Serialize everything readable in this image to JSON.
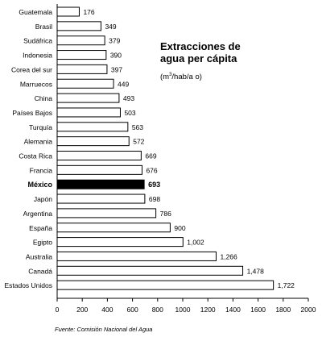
{
  "chart_data": {
    "type": "bar",
    "orientation": "horizontal",
    "title": "Extracciones de\nagua per cápita",
    "units": {
      "prefix": "(m",
      "sup": "3",
      "suffix": "/hab/a o)"
    },
    "source": "Fuente: Comisión Nacional del Agua",
    "categories": [
      "Guatemala",
      "Brasil",
      "Sudáfrica",
      "Indonesia",
      "Corea del sur",
      "Marruecos",
      "China",
      "Países Bajos",
      "Turquía",
      "Alemania",
      "Costa Rica",
      "Francia",
      "México",
      "Japón",
      "Argentina",
      "España",
      "Egipto",
      "Australia",
      "Canadá",
      "Estados Unidos"
    ],
    "values": [
      176,
      349,
      379,
      390,
      397,
      449,
      493,
      503,
      563,
      572,
      669,
      676,
      693,
      698,
      786,
      900,
      1002,
      1266,
      1478,
      1722
    ],
    "value_labels": [
      "176",
      "349",
      "379",
      "390",
      "397",
      "449",
      "493",
      "503",
      "563",
      "572",
      "669",
      "676",
      "693",
      "698",
      "786",
      "900",
      "1,002",
      "1,266",
      "1,478",
      "1,722"
    ],
    "highlight": "México",
    "xlim": [
      0,
      2000
    ],
    "xticks": [
      "0",
      "200",
      "400",
      "600",
      "800",
      "1000",
      "1200",
      "1400",
      "1600",
      "1800",
      "2000"
    ],
    "grid": false,
    "colors": {
      "bar_fill": "#ffffff",
      "bar_stroke": "#000000",
      "highlight_fill": "#000000"
    }
  }
}
